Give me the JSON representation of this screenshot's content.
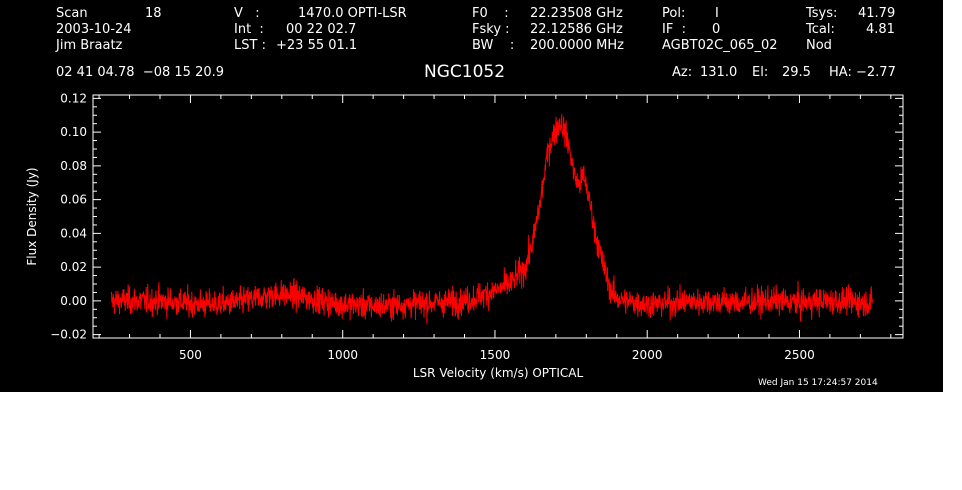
{
  "header": {
    "scan_label": "Scan",
    "scan_value": "18",
    "date": "2003-10-24",
    "observer": "Jim Braatz",
    "v_label": "V   :",
    "v_value": "1470.0 OPTI-LSR",
    "int_label": "Int  :",
    "int_value": "00 22 02.7",
    "lst_label": "LST :",
    "lst_value": "+23 55 01.1",
    "f0_label": "F0    :",
    "f0_value": "22.23508 GHz",
    "fsky_label": "Fsky :",
    "fsky_value": "22.12586 GHz",
    "bw_label": "BW    :",
    "bw_value": "200.0000 MHz",
    "pol_label": "Pol:",
    "pol_value": "I",
    "if_label": "IF  :",
    "if_value": "0",
    "project": "AGBT02C_065_02",
    "tsys_label": "Tsys:",
    "tsys_value": "41.79",
    "tcal_label": "Tcal:",
    "tcal_value": "4.81",
    "procedure": "Nod",
    "coords": "02 41 04.78  −08 15 20.9",
    "source": "NGC1052",
    "az_label": "Az:",
    "az_value": "131.0",
    "el_label": "El:",
    "el_value": "29.5",
    "ha_label": "HA:",
    "ha_value": "−2.77",
    "timestamp": "Wed Jan 15 17:24:57 2014"
  },
  "colors": {
    "background": "#000000",
    "axes": "#ffffff",
    "series": "#ff0000"
  },
  "chart_data": {
    "type": "line",
    "title": "NGC1052",
    "xlabel": "LSR Velocity (km/s) OPTICAL",
    "ylabel": "Flux Density (Jy)",
    "xlim": [
      180,
      2840
    ],
    "ylim": [
      -0.022,
      0.122
    ],
    "xticks": [
      500,
      1000,
      1500,
      2000,
      2500
    ],
    "xtick_labels": [
      "500",
      "1000",
      "1500",
      "2000",
      "2500"
    ],
    "yticks": [
      -0.02,
      0.0,
      0.02,
      0.04,
      0.06,
      0.08,
      0.1,
      0.12
    ],
    "ytick_labels": [
      "−0.02",
      "0.00",
      "0.02",
      "0.04",
      "0.06",
      "0.08",
      "0.10",
      "0.12"
    ],
    "grid": false,
    "noise_rms": 0.004,
    "series": [
      {
        "x": [
          240,
          400,
          550,
          650,
          700,
          750,
          800,
          850,
          900,
          1000,
          1100,
          1200,
          1300,
          1400,
          1450,
          1500,
          1550,
          1600,
          1625,
          1650,
          1675,
          1700,
          1715,
          1730,
          1745,
          1760,
          1775,
          1790,
          1800,
          1815,
          1830,
          1850,
          1870,
          1890,
          1920,
          2000,
          2100,
          2200,
          2300,
          2400,
          2500,
          2600,
          2740
        ],
        "y": [
          0.0,
          0.0,
          -0.002,
          -0.001,
          0.001,
          0.003,
          0.004,
          0.003,
          0.001,
          -0.002,
          -0.003,
          -0.002,
          -0.001,
          0.0,
          0.003,
          0.006,
          0.01,
          0.02,
          0.035,
          0.06,
          0.09,
          0.102,
          0.106,
          0.1,
          0.09,
          0.075,
          0.068,
          0.074,
          0.068,
          0.055,
          0.04,
          0.025,
          0.012,
          0.003,
          0.0,
          -0.002,
          -0.001,
          0.0,
          -0.001,
          0.0,
          -0.001,
          0.0,
          -0.001
        ]
      }
    ]
  }
}
